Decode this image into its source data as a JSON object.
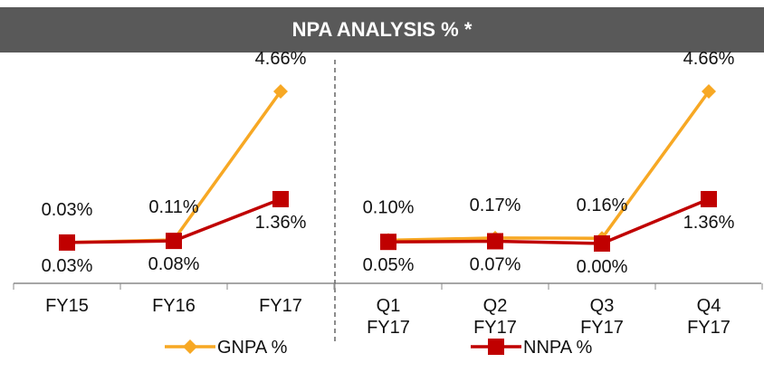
{
  "title": "NPA ANALYSIS % *",
  "chart_data": [
    {
      "type": "line",
      "categories": [
        "FY15",
        "FY16",
        "FY17"
      ],
      "series": [
        {
          "name": "GNPA %",
          "color": "#f7a824",
          "values": [
            0.03,
            0.11,
            4.66
          ],
          "value_labels": [
            "0.03%",
            "0.11%",
            "4.66%"
          ]
        },
        {
          "name": "NNPA %",
          "color": "#c00000",
          "values": [
            0.03,
            0.08,
            1.36
          ],
          "value_labels": [
            "0.03%",
            "0.08%",
            "1.36%"
          ]
        }
      ]
    },
    {
      "type": "line",
      "categories": [
        "Q1 FY17",
        "Q2 FY17",
        "Q3 FY17",
        "Q4 FY17"
      ],
      "series": [
        {
          "name": "GNPA %",
          "color": "#f7a824",
          "values": [
            0.1,
            0.17,
            0.16,
            4.66
          ],
          "value_labels": [
            "0.10%",
            "0.17%",
            "0.16%",
            "4.66%"
          ]
        },
        {
          "name": "NNPA %",
          "color": "#c00000",
          "values": [
            0.05,
            0.07,
            0.0,
            1.36
          ],
          "value_labels": [
            "0.05%",
            "0.07%",
            "0.00%",
            "1.36%"
          ]
        }
      ]
    }
  ]
}
